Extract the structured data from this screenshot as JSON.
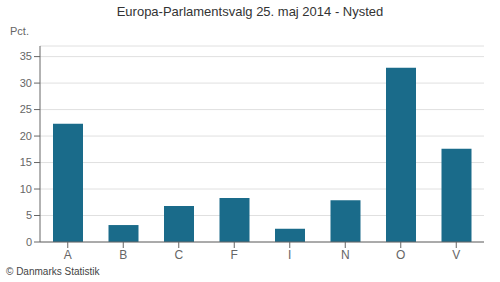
{
  "chart_data": {
    "type": "bar",
    "title": "Europa-Parlamentsvalg 25. maj 2014 - Nysted",
    "categories": [
      "A",
      "B",
      "C",
      "F",
      "I",
      "N",
      "O",
      "V"
    ],
    "values": [
      22.3,
      3.2,
      6.8,
      8.3,
      2.5,
      7.9,
      32.9,
      17.6
    ],
    "color": "#1a6b8a",
    "ylabel": "Pct.",
    "ylim": [
      0,
      37
    ],
    "yticks": [
      0,
      5,
      10,
      15,
      20,
      25,
      30,
      35
    ],
    "grid": true,
    "footer": "© Danmarks Statistik"
  }
}
